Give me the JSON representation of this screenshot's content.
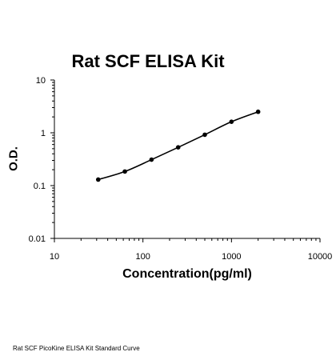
{
  "chart_data": {
    "type": "scatter",
    "title": "Rat SCF ELISA Kit",
    "xlabel": "Concentration(pg/ml)",
    "ylabel": "O.D.",
    "xscale": "log",
    "yscale": "log",
    "xlim": [
      10,
      10000
    ],
    "ylim": [
      0.01,
      10
    ],
    "xticks": [
      "10",
      "100",
      "1000",
      "10000"
    ],
    "yticks": [
      "0.01",
      "0.1",
      "1",
      "10"
    ],
    "series": [
      {
        "x": [
          31.25,
          62.5,
          125,
          250,
          500,
          1000,
          2000
        ],
        "y": [
          0.13,
          0.185,
          0.31,
          0.53,
          0.92,
          1.62,
          2.5
        ],
        "marker": "circle",
        "line": "smooth",
        "color": "#000000"
      }
    ],
    "grid": false,
    "legend": false
  },
  "caption": "Rat SCF PicoKine ELISA Kit Standard Curve"
}
